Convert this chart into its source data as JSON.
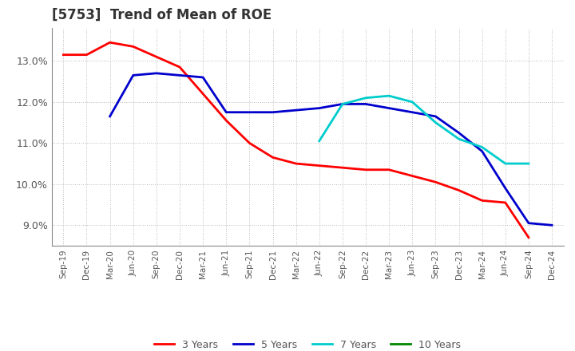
{
  "title": "[5753]  Trend of Mean of ROE",
  "x_labels": [
    "Sep-19",
    "Dec-19",
    "Mar-20",
    "Jun-20",
    "Sep-20",
    "Dec-20",
    "Mar-21",
    "Jun-21",
    "Sep-21",
    "Dec-21",
    "Mar-22",
    "Jun-22",
    "Sep-22",
    "Dec-22",
    "Mar-23",
    "Jun-23",
    "Sep-23",
    "Dec-23",
    "Mar-24",
    "Jun-24",
    "Sep-24",
    "Dec-24"
  ],
  "series": {
    "3 Years": {
      "color": "#FF0000",
      "data_x": [
        0,
        1,
        2,
        3,
        4,
        5,
        6,
        7,
        8,
        9,
        10,
        11,
        12,
        13,
        14,
        15,
        16,
        17,
        18,
        19,
        20,
        21
      ],
      "data_y": [
        13.15,
        13.15,
        13.45,
        13.35,
        13.1,
        12.85,
        12.2,
        11.55,
        11.0,
        10.65,
        10.5,
        10.45,
        10.4,
        10.35,
        10.35,
        10.2,
        10.05,
        9.85,
        9.6,
        9.55,
        8.7,
        null
      ]
    },
    "5 Years": {
      "color": "#0000CC",
      "data_x": [
        2,
        3,
        4,
        5,
        6,
        7,
        8,
        9,
        10,
        11,
        12,
        13,
        14,
        15,
        16,
        17,
        18,
        19,
        20,
        21
      ],
      "data_y": [
        11.65,
        12.65,
        12.7,
        12.65,
        12.6,
        11.75,
        11.75,
        11.75,
        11.8,
        11.85,
        11.95,
        11.95,
        11.85,
        11.75,
        11.65,
        11.25,
        10.8,
        9.9,
        9.05,
        9.0
      ]
    },
    "7 Years": {
      "color": "#00CCCC",
      "data_x": [
        11,
        12,
        13,
        14,
        15,
        16,
        17,
        18,
        19,
        20
      ],
      "data_y": [
        11.05,
        11.95,
        12.1,
        12.15,
        12.0,
        11.5,
        11.1,
        10.9,
        10.5,
        10.5
      ]
    },
    "10 Years": {
      "color": "#008800",
      "data_x": [],
      "data_y": []
    }
  },
  "ylim": [
    8.5,
    13.8
  ],
  "yticks": [
    9.0,
    10.0,
    11.0,
    12.0,
    13.0
  ],
  "background_color": "#ffffff",
  "grid_color": "#aaaaaa",
  "title_fontsize": 12,
  "title_color": "#333333",
  "tick_color": "#555555",
  "legend_text_color": "#555555"
}
